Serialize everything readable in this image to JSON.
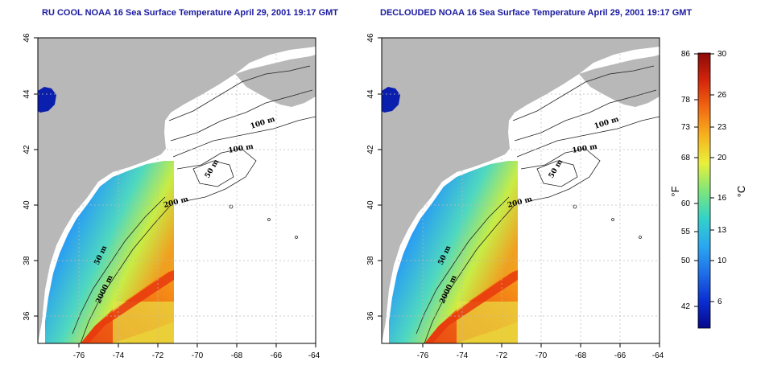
{
  "panels": [
    {
      "id": "left",
      "title": "RU COOL NOAA 16 Sea Surface Temperature April 29, 2001 19:17 GMT",
      "lat_ticks": [
        "46",
        "44",
        "42",
        "40",
        "38",
        "36"
      ],
      "lon_ticks": [
        "-76",
        "-74",
        "-72",
        "-70",
        "-68",
        "-66",
        "-64"
      ],
      "contour_labels": [
        "100 m",
        "100 m",
        "50 m",
        "200 m",
        "50 m",
        "2000 m"
      ]
    },
    {
      "id": "right",
      "title": "DECLOUDED NOAA 16 Sea Surface Temperature April 29, 2001 19:17 GMT",
      "lat_ticks": [
        "46",
        "44",
        "42",
        "40",
        "38",
        "36"
      ],
      "lon_ticks": [
        "-76",
        "-74",
        "-72",
        "-70",
        "-68",
        "-66",
        "-64"
      ],
      "contour_labels": [
        "100 m",
        "100 m",
        "50 m",
        "200 m",
        "50 m",
        "2000 m"
      ]
    }
  ],
  "colorbar": {
    "f_ticks": [
      "86",
      "78",
      "73",
      "68",
      "60",
      "55",
      "50",
      "42"
    ],
    "c_ticks": [
      "30",
      "26",
      "23",
      "20",
      "16",
      "13",
      "10",
      "6"
    ],
    "f_unit": "°F",
    "c_unit": "°C",
    "colors": [
      "#08088c",
      "#0a2fd0",
      "#1f6fe8",
      "#2aa8f0",
      "#33d2c8",
      "#7fe67a",
      "#e9f03a",
      "#f7b21f",
      "#f26a12",
      "#d4250c",
      "#8c0a08"
    ]
  }
}
